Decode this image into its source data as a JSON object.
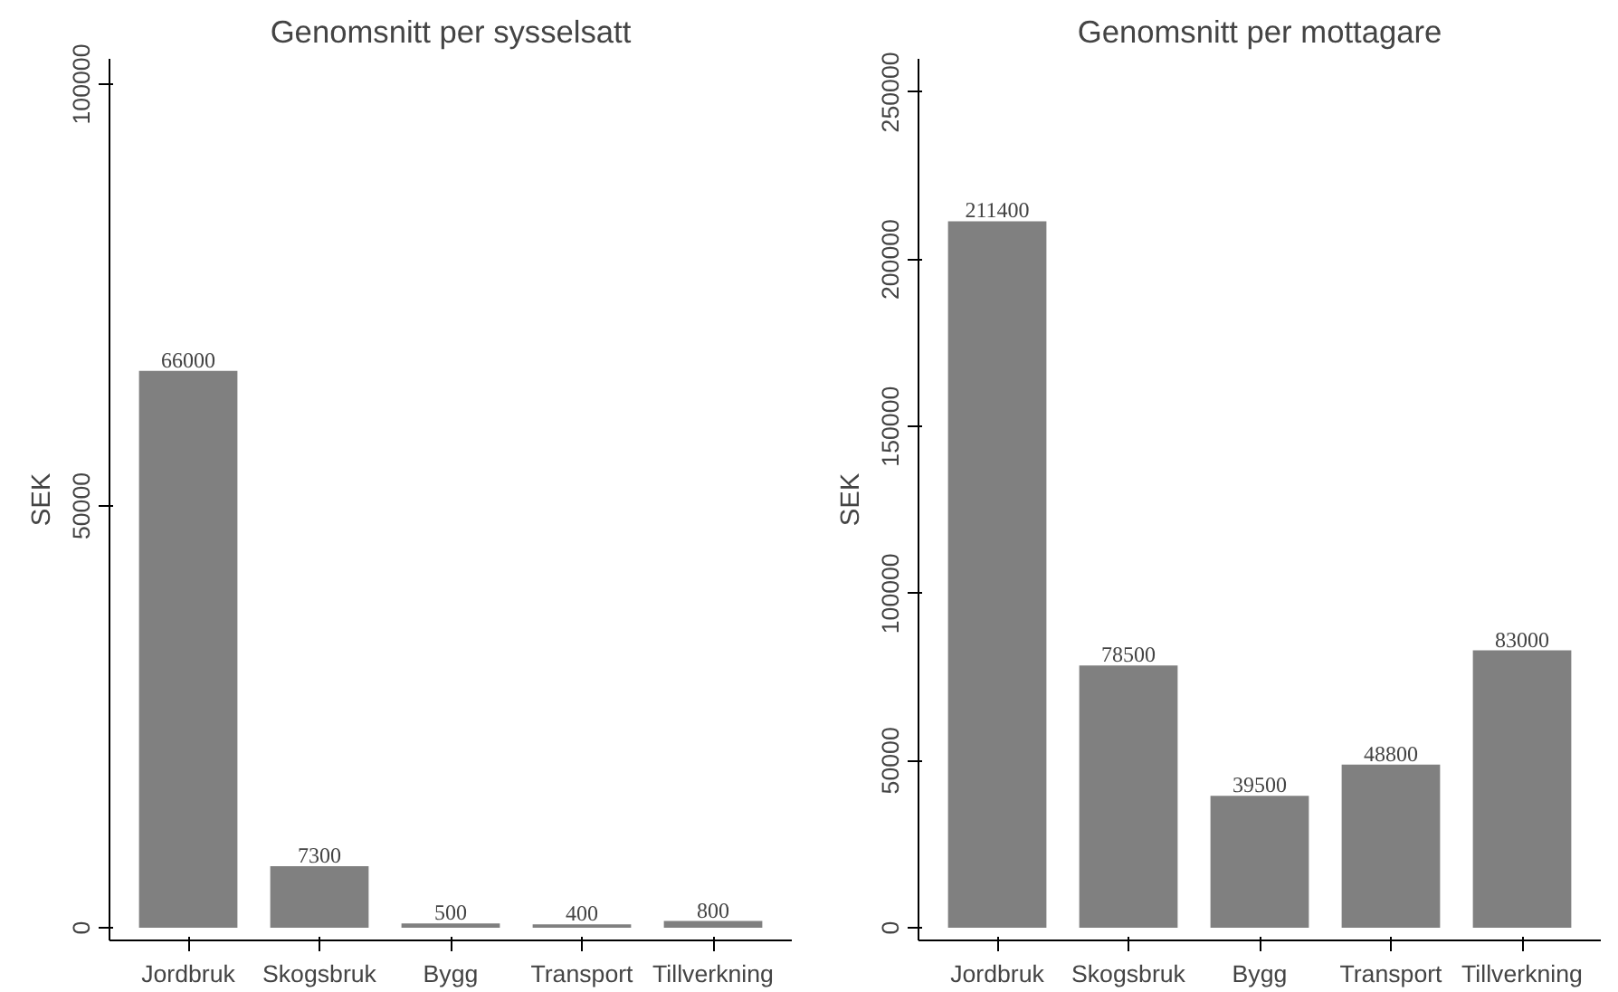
{
  "chart_data": [
    {
      "type": "bar",
      "title": "Genomsnitt per sysselsatt",
      "ylabel": "SEK",
      "categories": [
        "Jordbruk",
        "Skogsbruk",
        "Bygg",
        "Transport",
        "Tillverkning"
      ],
      "values": [
        66000,
        7300,
        500,
        400,
        800
      ],
      "color": "#808080",
      "ylim": [
        -1500,
        103000
      ],
      "yticks": [
        0,
        50000,
        100000
      ],
      "grid": false,
      "data_labels": true
    },
    {
      "type": "bar",
      "title": "Genomsnitt per mottagare",
      "ylabel": "SEK",
      "categories": [
        "Jordbruk",
        "Skogsbruk",
        "Bygg",
        "Transport",
        "Tillverkning"
      ],
      "values": [
        211400,
        78500,
        39500,
        48800,
        83000
      ],
      "color": "#808080",
      "ylim": [
        -3800,
        260000
      ],
      "yticks": [
        0,
        50000,
        100000,
        150000,
        200000,
        250000
      ],
      "grid": false,
      "data_labels": true
    }
  ]
}
